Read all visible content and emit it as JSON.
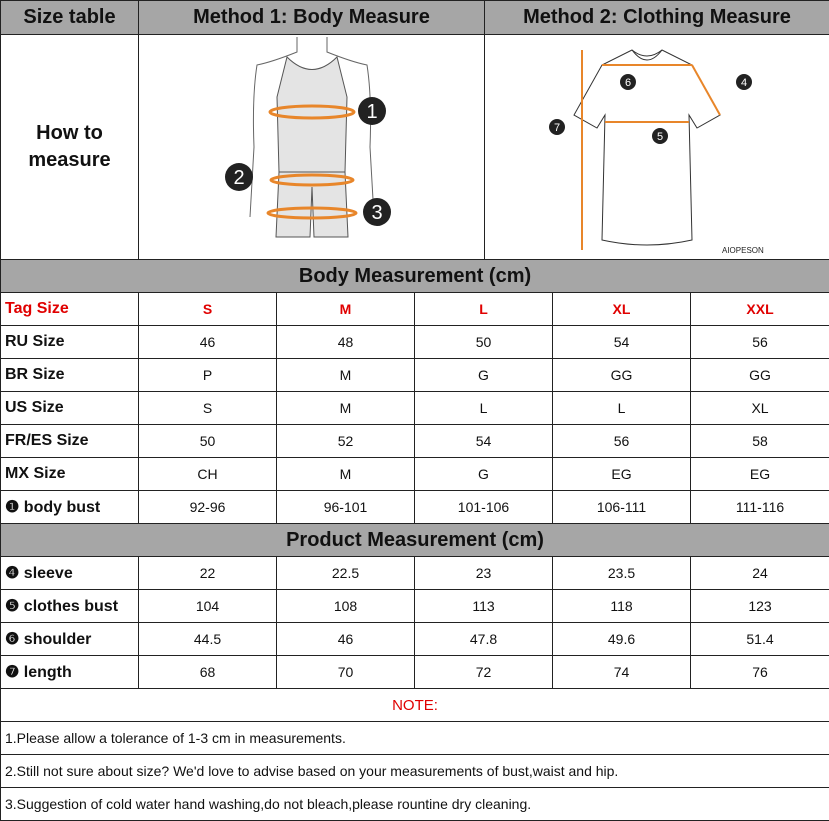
{
  "header": {
    "col1": "Size table",
    "col2": "Method 1: Body  Measure",
    "col3": "Method 2: Clothing Measure"
  },
  "how_to": {
    "line1": "How to",
    "line2": "measure"
  },
  "body_figure": {
    "markers": [
      "1",
      "2",
      "3"
    ]
  },
  "shirt_figure": {
    "markers": [
      "6",
      "4",
      "7",
      "5"
    ],
    "brand": "AIOPESON"
  },
  "colors": {
    "header_bg": "#a6a6a6",
    "tag_red": "#e00000",
    "measure_orange": "#e8862a"
  },
  "body_section": {
    "title": "Body Measurement (cm)",
    "tag_label": "Tag Size",
    "sizes": [
      "S",
      "M",
      "L",
      "XL",
      "XXL"
    ],
    "rows": [
      {
        "label": "RU Size",
        "values": [
          "46",
          "48",
          "50",
          "54",
          "56"
        ]
      },
      {
        "label": "BR Size",
        "values": [
          "P",
          "M",
          "G",
          "GG",
          "GG"
        ]
      },
      {
        "label": "US Size",
        "values": [
          "S",
          "M",
          "L",
          "L",
          "XL"
        ]
      },
      {
        "label": "FR/ES Size",
        "values": [
          "50",
          "52",
          "54",
          "56",
          "58"
        ]
      },
      {
        "label": "MX Size",
        "values": [
          "CH",
          "M",
          "G",
          "EG",
          "EG"
        ]
      },
      {
        "label": "❶ body bust",
        "values": [
          "92-96",
          "96-101",
          "101-106",
          "106-111",
          "111-116"
        ]
      }
    ]
  },
  "product_section": {
    "title": "Product Measurement (cm)",
    "rows": [
      {
        "label": "❹ sleeve",
        "values": [
          "22",
          "22.5",
          "23",
          "23.5",
          "24"
        ]
      },
      {
        "label": "❺ clothes bust",
        "values": [
          "104",
          "108",
          "113",
          "118",
          "123"
        ]
      },
      {
        "label": "❻ shoulder",
        "values": [
          "44.5",
          "46",
          "47.8",
          "49.6",
          "51.4"
        ]
      },
      {
        "label": "❼ length",
        "values": [
          "68",
          "70",
          "72",
          "74",
          "76"
        ]
      }
    ]
  },
  "notes": {
    "title": "NOTE:",
    "items": [
      "1.Please allow a tolerance of 1-3 cm in measurements.",
      "2.Still not sure about size? We'd love to advise based on your measurements of bust,waist and hip.",
      "3.Suggestion of cold water hand washing,do not bleach,please rountine dry cleaning."
    ]
  }
}
